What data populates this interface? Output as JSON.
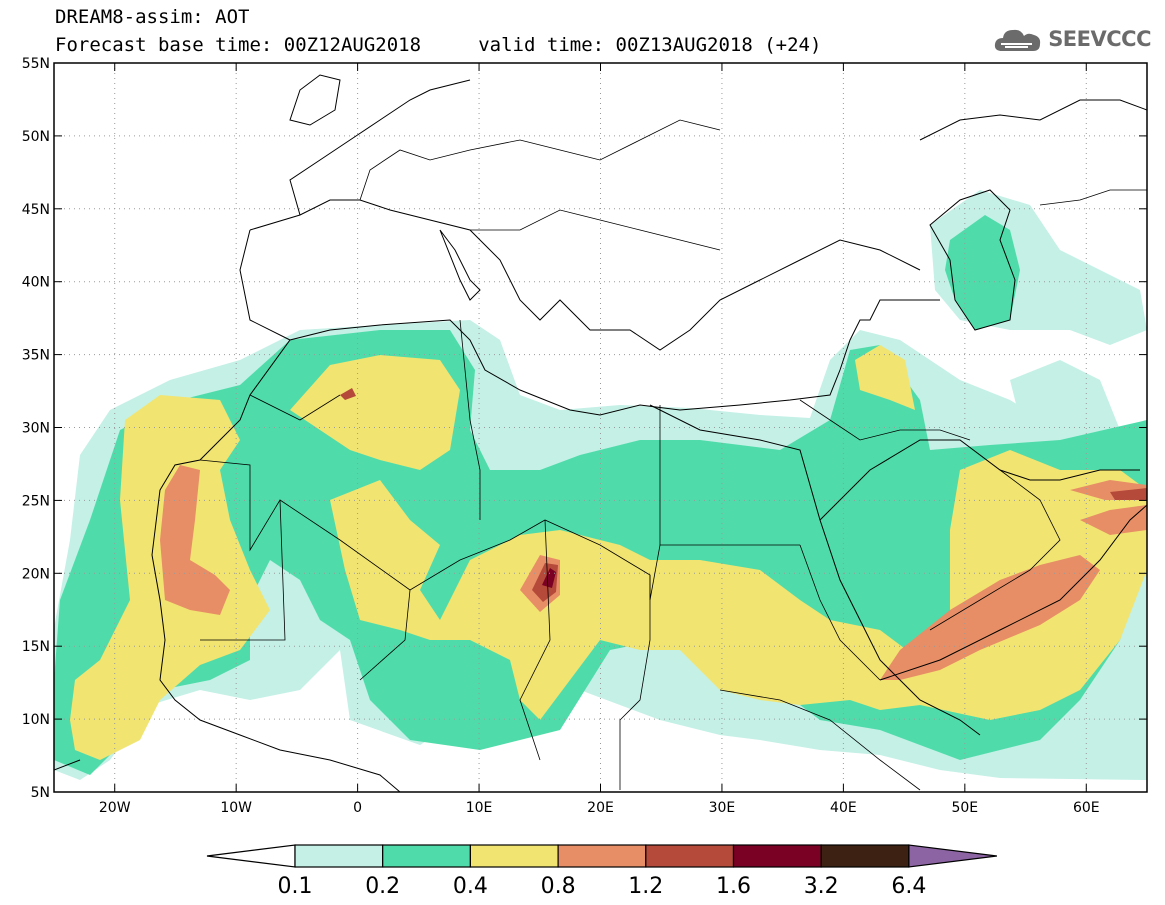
{
  "header": {
    "title": "DREAM8-assim: AOT",
    "subtitle": "Forecast base time: 00Z12AUG2018     valid time: 00Z13AUG2018 (+24)",
    "logo_text": "SEEVCCC",
    "logo_icon": "cloud-icon"
  },
  "map": {
    "lon_range": [
      -25,
      65
    ],
    "lat_range": [
      5,
      55
    ],
    "x_ticks": [
      {
        "lon": -20,
        "label": "20W"
      },
      {
        "lon": -10,
        "label": "10W"
      },
      {
        "lon": 0,
        "label": "0"
      },
      {
        "lon": 10,
        "label": "10E"
      },
      {
        "lon": 20,
        "label": "20E"
      },
      {
        "lon": 30,
        "label": "30E"
      },
      {
        "lon": 40,
        "label": "40E"
      },
      {
        "lon": 50,
        "label": "50E"
      },
      {
        "lon": 60,
        "label": "60E"
      }
    ],
    "y_ticks": [
      {
        "lat": 55,
        "label": "55N"
      },
      {
        "lat": 50,
        "label": "50N"
      },
      {
        "lat": 45,
        "label": "45N"
      },
      {
        "lat": 40,
        "label": "40N"
      },
      {
        "lat": 35,
        "label": "35N"
      },
      {
        "lat": 30,
        "label": "30N"
      },
      {
        "lat": 25,
        "label": "25N"
      },
      {
        "lat": 20,
        "label": "20N"
      },
      {
        "lat": 15,
        "label": "15N"
      },
      {
        "lat": 10,
        "label": "10N"
      },
      {
        "lat": 5,
        "label": "5N"
      }
    ],
    "grid": "dotted"
  },
  "colorbar": {
    "labels": [
      "0.1",
      "0.2",
      "0.4",
      "0.8",
      "1.2",
      "1.6",
      "3.2",
      "6.4"
    ],
    "colors": [
      "#ffffff",
      "#c4f0e6",
      "#4fdcaa",
      "#f2e471",
      "#e78e66",
      "#b54a3a",
      "#7a0024",
      "#3d2213",
      "#8c63a3"
    ]
  }
}
